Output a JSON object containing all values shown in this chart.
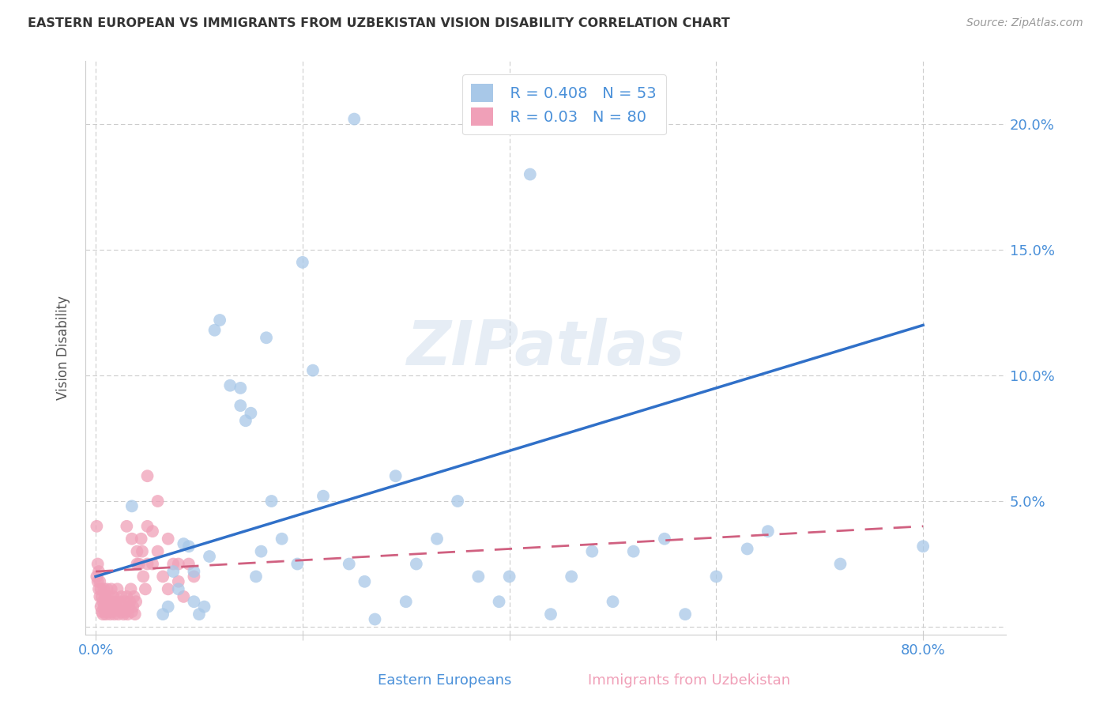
{
  "title": "EASTERN EUROPEAN VS IMMIGRANTS FROM UZBEKISTAN VISION DISABILITY CORRELATION CHART",
  "source": "Source: ZipAtlas.com",
  "ylabel": "Vision Disability",
  "R_blue": 0.408,
  "N_blue": 53,
  "R_pink": 0.03,
  "N_pink": 80,
  "blue_color": "#a8c8e8",
  "pink_color": "#f0a0b8",
  "blue_line_color": "#3070c8",
  "pink_line_color": "#d06080",
  "watermark": "ZIPatlas",
  "blue_line_x0": 0.0,
  "blue_line_y0": 0.02,
  "blue_line_x1": 0.8,
  "blue_line_y1": 0.12,
  "pink_line_x0": 0.0,
  "pink_line_y0": 0.022,
  "pink_line_x1": 0.8,
  "pink_line_y1": 0.04,
  "blue_scatter_x": [
    0.035,
    0.065,
    0.07,
    0.075,
    0.08,
    0.085,
    0.09,
    0.095,
    0.095,
    0.1,
    0.105,
    0.11,
    0.115,
    0.12,
    0.13,
    0.14,
    0.14,
    0.145,
    0.15,
    0.155,
    0.16,
    0.165,
    0.17,
    0.18,
    0.195,
    0.2,
    0.21,
    0.22,
    0.245,
    0.26,
    0.27,
    0.29,
    0.3,
    0.31,
    0.33,
    0.35,
    0.37,
    0.39,
    0.4,
    0.42,
    0.44,
    0.46,
    0.48,
    0.5,
    0.52,
    0.55,
    0.57,
    0.6,
    0.63,
    0.65,
    0.72,
    0.8,
    0.25
  ],
  "blue_scatter_y": [
    0.048,
    0.005,
    0.008,
    0.022,
    0.015,
    0.033,
    0.032,
    0.01,
    0.022,
    0.005,
    0.008,
    0.028,
    0.118,
    0.122,
    0.096,
    0.095,
    0.088,
    0.082,
    0.085,
    0.02,
    0.03,
    0.115,
    0.05,
    0.035,
    0.025,
    0.145,
    0.102,
    0.052,
    0.025,
    0.018,
    0.003,
    0.06,
    0.01,
    0.025,
    0.035,
    0.05,
    0.02,
    0.01,
    0.02,
    0.18,
    0.005,
    0.02,
    0.03,
    0.01,
    0.03,
    0.035,
    0.005,
    0.02,
    0.031,
    0.038,
    0.025,
    0.032,
    0.202
  ],
  "pink_scatter_x": [
    0.001,
    0.001,
    0.002,
    0.002,
    0.003,
    0.003,
    0.004,
    0.004,
    0.005,
    0.005,
    0.006,
    0.006,
    0.007,
    0.007,
    0.008,
    0.008,
    0.009,
    0.009,
    0.01,
    0.01,
    0.011,
    0.011,
    0.012,
    0.012,
    0.013,
    0.013,
    0.014,
    0.014,
    0.015,
    0.015,
    0.016,
    0.016,
    0.017,
    0.018,
    0.019,
    0.02,
    0.021,
    0.022,
    0.023,
    0.024,
    0.025,
    0.026,
    0.027,
    0.028,
    0.029,
    0.03,
    0.031,
    0.032,
    0.033,
    0.034,
    0.035,
    0.036,
    0.037,
    0.038,
    0.039,
    0.04,
    0.042,
    0.044,
    0.046,
    0.048,
    0.05,
    0.055,
    0.06,
    0.065,
    0.07,
    0.075,
    0.08,
    0.085,
    0.09,
    0.095,
    0.03,
    0.035,
    0.04,
    0.045,
    0.05,
    0.06,
    0.07,
    0.08,
    0.05,
    0.055
  ],
  "pink_scatter_y": [
    0.02,
    0.04,
    0.018,
    0.025,
    0.015,
    0.022,
    0.012,
    0.018,
    0.008,
    0.015,
    0.006,
    0.012,
    0.01,
    0.005,
    0.008,
    0.015,
    0.006,
    0.012,
    0.005,
    0.01,
    0.008,
    0.015,
    0.01,
    0.006,
    0.008,
    0.012,
    0.005,
    0.01,
    0.008,
    0.015,
    0.01,
    0.006,
    0.012,
    0.005,
    0.008,
    0.01,
    0.015,
    0.005,
    0.01,
    0.006,
    0.012,
    0.008,
    0.005,
    0.01,
    0.006,
    0.012,
    0.005,
    0.008,
    0.01,
    0.015,
    0.006,
    0.008,
    0.012,
    0.005,
    0.01,
    0.03,
    0.025,
    0.035,
    0.02,
    0.015,
    0.025,
    0.038,
    0.03,
    0.02,
    0.015,
    0.025,
    0.018,
    0.012,
    0.025,
    0.02,
    0.04,
    0.035,
    0.025,
    0.03,
    0.04,
    0.05,
    0.035,
    0.025,
    0.06,
    0.025
  ],
  "xlim": [
    -0.01,
    0.88
  ],
  "ylim": [
    -0.003,
    0.225
  ],
  "x_ticks": [
    0.0,
    0.2,
    0.4,
    0.6,
    0.8
  ],
  "y_ticks": [
    0.0,
    0.05,
    0.1,
    0.15,
    0.2
  ]
}
